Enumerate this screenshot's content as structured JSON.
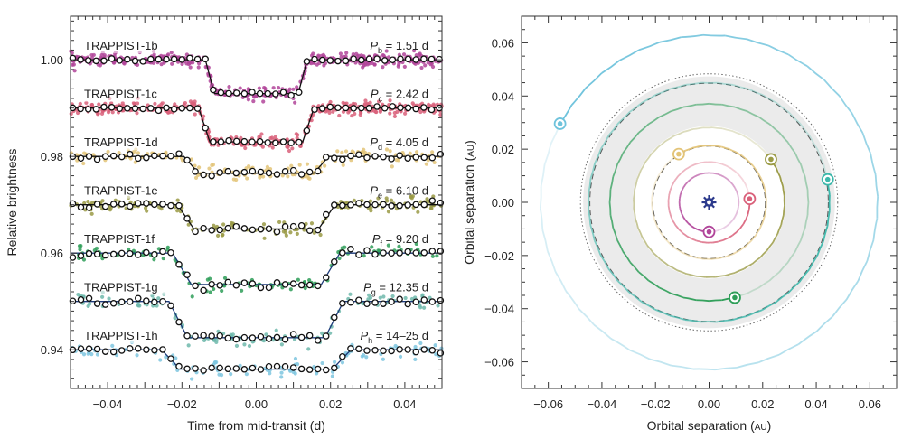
{
  "chart_data": [
    {
      "type": "scatter",
      "xlabel": "Time from mid-transit (d)",
      "ylabel": "Relative brightness",
      "xlim": [
        -0.05,
        0.05
      ],
      "ylim": [
        0.932,
        1.009
      ],
      "xticks": [
        -0.04,
        -0.02,
        0.0,
        0.02,
        0.04
      ],
      "xtick_labels": [
        "−0.04",
        "−0.02",
        "0.00",
        "0.02",
        "0.04"
      ],
      "yticks": [
        0.94,
        0.96,
        0.98,
        1.0
      ],
      "ytick_labels": [
        "0.94",
        "0.96",
        "0.98",
        "1.00"
      ],
      "series": [
        {
          "name": "TRAPPIST-1b",
          "period_sym": "P",
          "period_sub": "b",
          "period_value": " = 1.51 d",
          "color": "#b1459a",
          "baseline": 1.0,
          "depth": 0.007,
          "half_duration": 0.0125,
          "ingress": 0.0012
        },
        {
          "name": "TRAPPIST-1c",
          "period_sym": "P",
          "period_sub": "c",
          "period_value": " = 2.42 d",
          "color": "#d9607a",
          "baseline": 0.99,
          "depth": 0.007,
          "half_duration": 0.014,
          "ingress": 0.0015
        },
        {
          "name": "TRAPPIST-1d",
          "period_sym": "P",
          "period_sub": "d",
          "period_value": " = 4.05 d",
          "color": "#e3c478",
          "baseline": 0.98,
          "depth": 0.0035,
          "half_duration": 0.0175,
          "ingress": 0.002
        },
        {
          "name": "TRAPPIST-1e",
          "period_sym": "P",
          "period_sub": "e",
          "period_value": " = 6.10 d",
          "color": "#9a9a45",
          "baseline": 0.97,
          "depth": 0.005,
          "half_duration": 0.019,
          "ingress": 0.0022
        },
        {
          "name": "TRAPPIST-1f",
          "period_sym": "P",
          "period_sub": "f",
          "period_value": " = 9.20 d",
          "color": "#2e9e58",
          "baseline": 0.96,
          "depth": 0.0065,
          "half_duration": 0.02,
          "ingress": 0.0025
        },
        {
          "name": "TRAPPIST-1g",
          "period_sym": "P",
          "period_sub": "g",
          "period_value": " = 12.35 d",
          "color": "#6fb8ab",
          "baseline": 0.95,
          "depth": 0.0075,
          "half_duration": 0.021,
          "ingress": 0.0025
        },
        {
          "name": "TRAPPIST-1h",
          "period_sym": "P",
          "period_sub": "h",
          "period_value": " = 14–25 d",
          "color": "#7ec6df",
          "baseline": 0.94,
          "depth": 0.004,
          "half_duration": 0.023,
          "ingress": 0.0025
        }
      ]
    },
    {
      "type": "scatter",
      "xlabel_text": "Orbital separation (",
      "ylabel_text": "Orbital separation (",
      "unit": "AU",
      "unit_close": ")",
      "xlim": [
        -0.07,
        0.07
      ],
      "ylim": [
        -0.07,
        0.07
      ],
      "xticks": [
        -0.06,
        -0.04,
        -0.02,
        0.0,
        0.02,
        0.04,
        0.06
      ],
      "xtick_labels": [
        "−0.06",
        "−0.04",
        "−0.02",
        "0.00",
        "0.02",
        "0.04",
        "0.06"
      ],
      "yticks": [
        -0.06,
        -0.04,
        -0.02,
        0.0,
        0.02,
        0.04,
        0.06
      ],
      "ytick_labels": [
        "−0.06",
        "−0.04",
        "−0.02",
        "0.00",
        "0.02",
        "0.04",
        "0.06"
      ],
      "star": {
        "x": 0,
        "y": 0,
        "color": "#2c3a8c"
      },
      "habitable_zone": {
        "inner_au": 0.0285,
        "outer_au": 0.047,
        "color": "#ebebeb"
      },
      "dashed_orbit_au": [
        0.021,
        0.0445
      ],
      "dotted_orbit_au": [
        0.048
      ],
      "planets": [
        {
          "name": "TRAPPIST-1b",
          "a": 0.0111,
          "angle_deg": 270,
          "color": "#b1459a"
        },
        {
          "name": "TRAPPIST-1c",
          "a": 0.0152,
          "angle_deg": 5,
          "color": "#d9607a"
        },
        {
          "name": "TRAPPIST-1d",
          "a": 0.0214,
          "angle_deg": 122,
          "color": "#e3c478"
        },
        {
          "name": "TRAPPIST-1e",
          "a": 0.0282,
          "angle_deg": 35,
          "color": "#9a9a45"
        },
        {
          "name": "TRAPPIST-1f",
          "a": 0.0371,
          "angle_deg": 285,
          "color": "#2e9e58"
        },
        {
          "name": "TRAPPIST-1g",
          "a": 0.0451,
          "angle_deg": 11,
          "color": "#3cb8ab"
        },
        {
          "name": "TRAPPIST-1h",
          "a": 0.063,
          "angle_deg": 152,
          "color": "#6fc3dc"
        }
      ]
    }
  ]
}
